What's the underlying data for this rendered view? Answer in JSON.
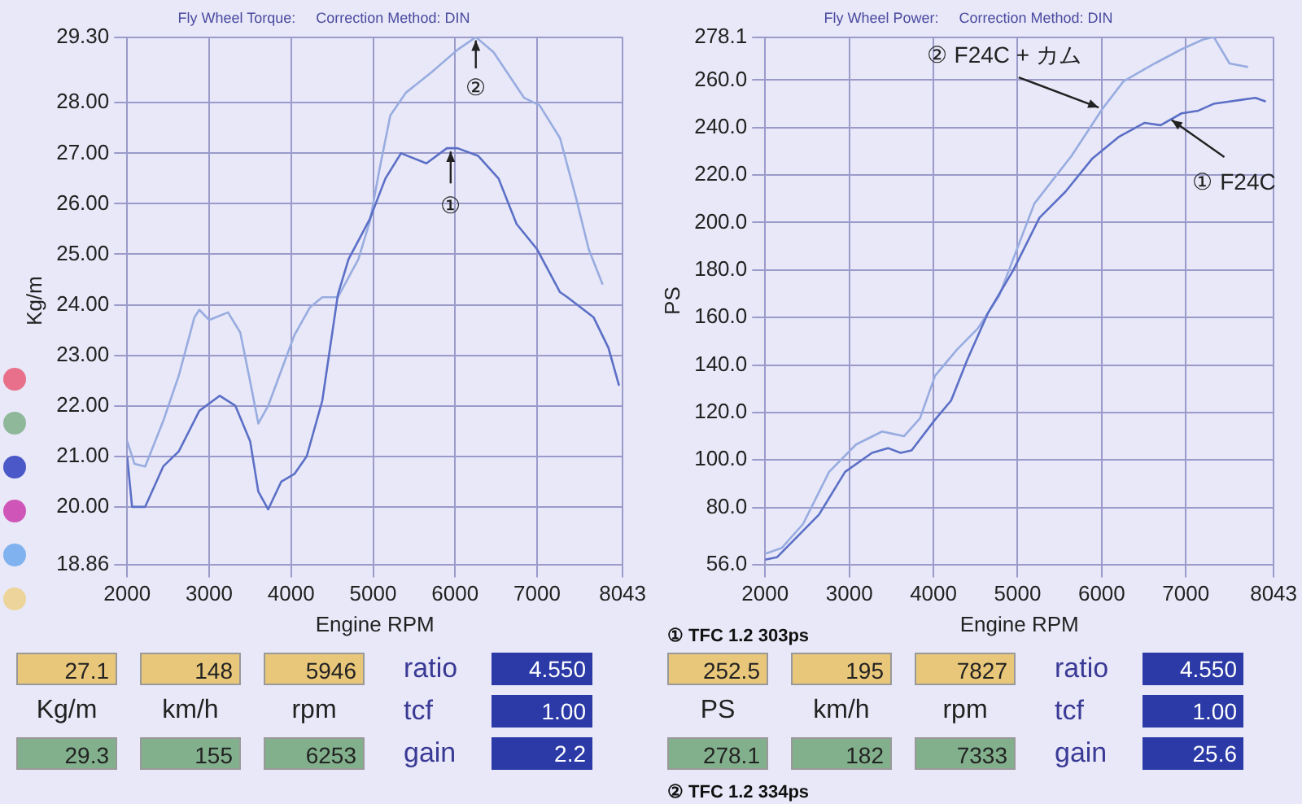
{
  "chart_data": [
    {
      "type": "line",
      "subtitle": "Fly Wheel Torque:     Correction Method: DIN",
      "xlabel": "Engine RPM",
      "ylabel": "Kg/m",
      "xlim": [
        2000,
        8043
      ],
      "xticks": [
        2000,
        3000,
        4000,
        5000,
        6000,
        7000,
        8043
      ],
      "ylim": [
        18.86,
        29.3
      ],
      "yticks": [
        18.86,
        {
          "value": 20,
          "label": "20.00"
        },
        {
          "value": 21,
          "label": "21.00"
        },
        {
          "value": 22,
          "label": "22.00"
        },
        {
          "value": 23,
          "label": "23.00"
        },
        {
          "value": 24,
          "label": "24.00"
        },
        {
          "value": 25,
          "label": "25.00"
        },
        {
          "value": 26,
          "label": "26.00"
        },
        {
          "value": 27,
          "label": "27.00"
        },
        {
          "value": 28,
          "label": "28.00"
        },
        {
          "value": 29.3,
          "label": "29.30"
        }
      ],
      "grid": true,
      "marker": "none",
      "line_style": "solid",
      "series": [
        {
          "color": "#5b6fc6",
          "x": [
            2000,
            2060,
            2220,
            2440,
            2630,
            2880,
            3130,
            3320,
            3500,
            3600,
            3720,
            3880,
            4040,
            4190,
            4380,
            4570,
            4700,
            4960,
            5150,
            5340,
            5650,
            5900,
            6030,
            6280,
            6530,
            6750,
            7000,
            7280,
            7370,
            7690,
            7870,
            8000
          ],
          "values": [
            21.0,
            20.0,
            20.0,
            20.8,
            21.1,
            21.9,
            22.2,
            22.0,
            21.3,
            20.3,
            19.95,
            20.5,
            20.65,
            21.0,
            22.1,
            24.2,
            24.9,
            25.7,
            26.5,
            27.0,
            26.8,
            27.1,
            27.1,
            26.95,
            26.5,
            25.6,
            25.1,
            24.25,
            24.15,
            23.75,
            23.15,
            22.4
          ]
        },
        {
          "color": "#98ace0",
          "x": [
            2000,
            2090,
            2220,
            2440,
            2630,
            2820,
            2880,
            3000,
            3230,
            3380,
            3510,
            3600,
            3720,
            3880,
            4040,
            4230,
            4380,
            4570,
            4820,
            4960,
            5080,
            5210,
            5400,
            5710,
            6030,
            6253,
            6470,
            6840,
            7030,
            7280,
            7470,
            7630,
            7800
          ],
          "values": [
            21.3,
            20.85,
            20.8,
            21.7,
            22.6,
            23.75,
            23.9,
            23.7,
            23.85,
            23.45,
            22.4,
            21.65,
            22.0,
            22.7,
            23.4,
            23.95,
            24.15,
            24.15,
            24.9,
            25.65,
            26.7,
            27.75,
            28.2,
            28.6,
            29.05,
            29.3,
            29.0,
            28.1,
            27.95,
            27.3,
            26.15,
            25.1,
            24.4
          ]
        }
      ],
      "annotations": [
        {
          "text": "①",
          "x": 5946,
          "y": 27.1
        },
        {
          "text": "②",
          "x": 6253,
          "y": 29.3
        },
        "27.1",
        "148",
        "5946",
        "ratio",
        "4.550",
        "Kg/m",
        "km/h",
        "rpm",
        "tcf",
        "1.00",
        "29.3",
        "155",
        "6253",
        "gain",
        "2.2"
      ]
    },
    {
      "type": "line",
      "subtitle": "Fly Wheel Power:     Correction Method: DIN",
      "xlabel": "Engine RPM",
      "ylabel": "PS",
      "xlim": [
        2000,
        8043
      ],
      "xticks": [
        2000,
        3000,
        4000,
        5000,
        6000,
        7000,
        8043
      ],
      "ylim": [
        56,
        278.1
      ],
      "yticks": [
        {
          "value": 56,
          "label": "56.0"
        },
        {
          "value": 80,
          "label": "80.0"
        },
        {
          "value": 100,
          "label": "100.0"
        },
        {
          "value": 120,
          "label": "120.0"
        },
        {
          "value": 140,
          "label": "140.0"
        },
        {
          "value": 160,
          "label": "160.0"
        },
        {
          "value": 180,
          "label": "180.0"
        },
        {
          "value": 200,
          "label": "200.0"
        },
        {
          "value": 220,
          "label": "220.0"
        },
        {
          "value": 240,
          "label": "240.0"
        },
        {
          "value": 260,
          "label": "260.0"
        },
        278.1
      ],
      "grid": true,
      "marker": "none",
      "line_style": "solid",
      "series": [
        {
          "color": "#5b6fc6",
          "x": [
            2000,
            2140,
            2390,
            2640,
            2950,
            3270,
            3460,
            3610,
            3740,
            4020,
            4210,
            4400,
            4650,
            4950,
            5260,
            5570,
            5890,
            6200,
            6510,
            6700,
            6950,
            7140,
            7330,
            7520,
            7827,
            7950
          ],
          "values": [
            58,
            59,
            68,
            77,
            95,
            103,
            105,
            103,
            104,
            117,
            125,
            142,
            162,
            180,
            202,
            213,
            227,
            236,
            242,
            241,
            246,
            247,
            250,
            251,
            252.5,
            251
          ]
        },
        {
          "color": "#98ace0",
          "x": [
            2000,
            2200,
            2450,
            2760,
            3080,
            3390,
            3520,
            3650,
            3840,
            4020,
            4280,
            4530,
            4780,
            5200,
            5640,
            6010,
            6260,
            6630,
            6950,
            7200,
            7333,
            7520,
            7740
          ],
          "values": [
            60.5,
            63,
            73,
            95,
            106.5,
            112,
            111,
            110,
            117.5,
            135.5,
            146.5,
            155.5,
            169,
            208,
            228,
            248,
            259.5,
            267,
            273,
            277,
            278.1,
            267,
            265.5
          ]
        }
      ],
      "annotations": [
        {
          "text": "② F24C + カム",
          "x": 6000,
          "y": 248
        },
        {
          "text": "① F24C",
          "x": 6800,
          "y": 244
        },
        "① TFC 1.2 303ps",
        "252.5",
        "195",
        "7827",
        "ratio",
        "4.550",
        "PS",
        "km/h",
        "rpm",
        "tcf",
        "1.00",
        "278.1",
        "182",
        "7333",
        "gain",
        "25.6",
        "② TFC 1.2 334ps"
      ]
    }
  ]
}
